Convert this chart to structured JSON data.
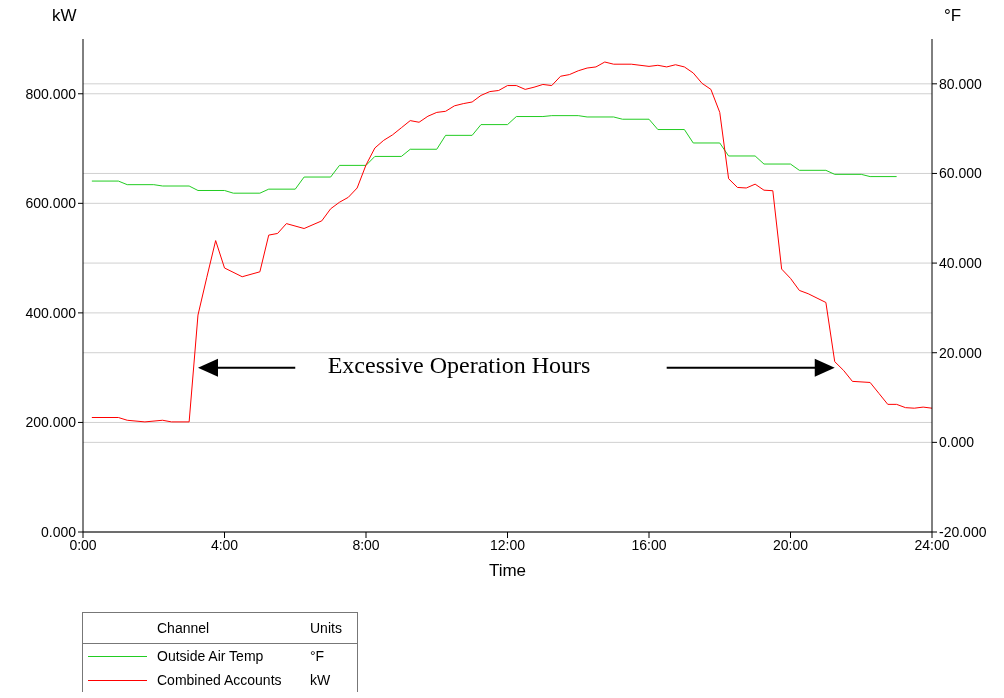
{
  "chart_data": {
    "type": "line",
    "xlabel": "Time",
    "ylabel": "kW",
    "y2label": "°F",
    "legend_title": "Channel",
    "annotations": [
      "Excessive Operation Hours",
      "Units",
      "°F",
      "kW"
    ],
    "xlim": [
      0,
      24
    ],
    "xticks": [
      {
        "value": 0,
        "label": "0:00"
      },
      {
        "value": 4,
        "label": "4:00"
      },
      {
        "value": 8,
        "label": "8:00"
      },
      {
        "value": 12,
        "label": "12:00"
      },
      {
        "value": 16,
        "label": "16:00"
      },
      {
        "value": 20,
        "label": "20:00"
      },
      {
        "value": 24,
        "label": "24:00"
      }
    ],
    "ylim": [
      0,
      900
    ],
    "yticks": [
      {
        "value": 0,
        "label": "0.000"
      },
      {
        "value": 200,
        "label": "200.000"
      },
      {
        "value": 400,
        "label": "400.000"
      },
      {
        "value": 600,
        "label": "600.000"
      },
      {
        "value": 800,
        "label": "800.000"
      }
    ],
    "y2lim": [
      -20,
      90
    ],
    "y2ticks": [
      {
        "value": -20,
        "label": "-20.000"
      },
      {
        "value": 0,
        "label": "0.000"
      },
      {
        "value": 20,
        "label": "20.000"
      },
      {
        "value": 40,
        "label": "40.000"
      },
      {
        "value": 60,
        "label": "60.000"
      },
      {
        "value": 80,
        "label": "80.000"
      }
    ],
    "grid": "y",
    "legend": "bottom",
    "series": [
      {
        "name": "Outside Air Temp",
        "color": "#22cc22",
        "axis": "y2",
        "x": [
          0.25,
          1,
          1.25,
          2,
          2.25,
          3,
          3.25,
          4,
          4.25,
          5,
          5.25,
          6,
          6.25,
          7,
          7.25,
          8,
          8.25,
          9,
          9.25,
          10,
          10.25,
          11,
          11.25,
          12,
          12.25,
          13,
          13.25,
          14,
          14.25,
          15,
          15.25,
          16,
          16.25,
          17,
          17.25,
          18,
          18.25,
          19,
          19.25,
          20,
          20.25,
          21,
          21.25,
          22,
          22.25,
          23
        ],
        "values": [
          58.3,
          58.3,
          57.5,
          57.5,
          57.2,
          57.2,
          56.2,
          56.2,
          55.6,
          55.6,
          56.5,
          56.5,
          59.2,
          59.2,
          61.8,
          61.8,
          63.8,
          63.8,
          65.4,
          65.4,
          68.5,
          68.5,
          70.9,
          70.9,
          72.7,
          72.7,
          72.9,
          72.9,
          72.6,
          72.6,
          72.1,
          72.1,
          69.8,
          69.8,
          66.8,
          66.8,
          63.9,
          63.9,
          62.1,
          62.1,
          60.7,
          60.7,
          59.8,
          59.8,
          59.3,
          59.3
        ]
      },
      {
        "name": "Combined Accounts",
        "color": "#ff0000",
        "x": [
          0.25,
          1,
          1.25,
          1.75,
          2.25,
          2.5,
          3,
          3.25,
          3.5,
          3.75,
          4,
          4.5,
          5,
          5.25,
          5.5,
          5.75,
          6.25,
          6.75,
          7,
          7.25,
          7.5,
          7.75,
          8,
          8.25,
          8.5,
          8.75,
          9,
          9.25,
          9.5,
          9.75,
          10,
          10.25,
          10.5,
          10.75,
          11,
          11.25,
          11.5,
          11.75,
          12,
          12.25,
          12.5,
          12.75,
          13,
          13.25,
          13.5,
          13.75,
          14,
          14.25,
          14.5,
          14.75,
          15,
          15.5,
          16,
          16.25,
          16.5,
          16.75,
          17,
          17.25,
          17.5,
          17.75,
          18,
          18.25,
          18.5,
          18.75,
          19,
          19.25,
          19.5,
          19.75,
          20,
          20.25,
          20.5,
          20.75,
          21,
          21.25,
          21.5,
          21.75,
          22.25,
          22.5,
          22.75,
          23,
          23.25,
          23.5,
          23.75,
          24
        ],
        "values": [
          209,
          209,
          204,
          201,
          204,
          201,
          201,
          396,
          465,
          532,
          482,
          466,
          475,
          542,
          545,
          563,
          554,
          568,
          590,
          602,
          611,
          628,
          670,
          701,
          715,
          725,
          738,
          751,
          748,
          759,
          766,
          768,
          778,
          782,
          785,
          797,
          804,
          806,
          815,
          815,
          808,
          812,
          817,
          815,
          832,
          835,
          842,
          847,
          849,
          858,
          854,
          854,
          850,
          852,
          849,
          853,
          849,
          838,
          819,
          808,
          766,
          645,
          629,
          628,
          635,
          624,
          623,
          480,
          463,
          441,
          435,
          427,
          419,
          311,
          295,
          275,
          273,
          253,
          233,
          233,
          227,
          226,
          228,
          226
        ]
      }
    ]
  }
}
